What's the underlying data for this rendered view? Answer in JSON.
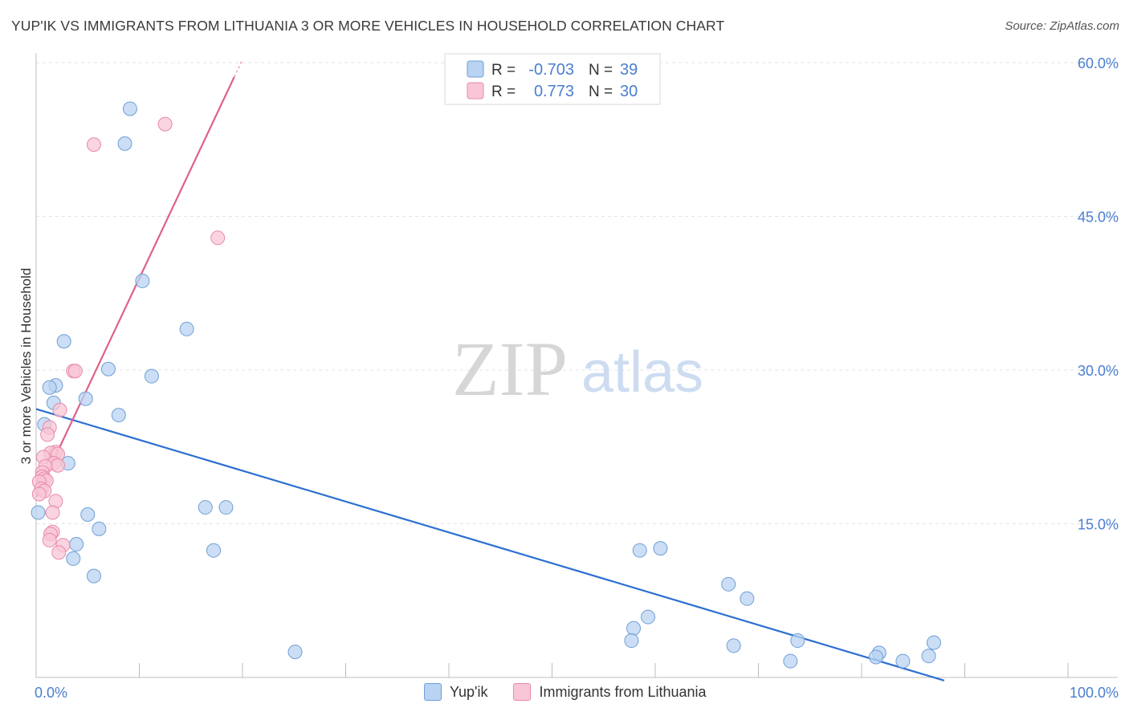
{
  "header": {
    "title": "YUP'IK VS IMMIGRANTS FROM LITHUANIA 3 OR MORE VEHICLES IN HOUSEHOLD CORRELATION CHART",
    "source": "Source: ZipAtlas.com"
  },
  "watermark": {
    "zip": "ZIP",
    "atlas": "atlas"
  },
  "colors": {
    "blue_fill": "#b9d3f2",
    "blue_stroke": "#6f9fd6",
    "blue_line": "#2d6fd1",
    "pink_fill": "#f8c6d6",
    "pink_stroke": "#e88aa8",
    "pink_line": "#e0608c",
    "tick_label": "#4a7fcf",
    "grid": "#e3e3e3"
  },
  "chart_data": {
    "type": "scatter",
    "title": "YUP'IK VS IMMIGRANTS FROM LITHUANIA 3 OR MORE VEHICLES IN HOUSEHOLD CORRELATION CHART",
    "xlabel": "",
    "ylabel": "3 or more Vehicles in Household",
    "xlim": [
      0,
      100
    ],
    "ylim": [
      0,
      60
    ],
    "x_tick_labels": [
      "0.0%",
      "100.0%"
    ],
    "y_ticks": [
      15,
      30,
      45,
      60
    ],
    "y_tick_labels": [
      "15.0%",
      "30.0%",
      "45.0%",
      "60.0%"
    ],
    "legend": {
      "position": "top-center",
      "entries": [
        {
          "r_label": "R =",
          "r_value": "-0.703",
          "n_label": "N =",
          "n_value": "39"
        },
        {
          "r_label": "R =",
          "r_value": "0.773",
          "n_label": "N =",
          "n_value": "30"
        }
      ]
    },
    "series": [
      {
        "name": "Yup'ik",
        "color": "#b9d3f2",
        "points": [
          [
            9.1,
            55.5
          ],
          [
            8.6,
            52.1
          ],
          [
            10.3,
            38.7
          ],
          [
            14.6,
            34.0
          ],
          [
            2.7,
            32.8
          ],
          [
            1.9,
            28.5
          ],
          [
            1.3,
            28.3
          ],
          [
            7.0,
            30.1
          ],
          [
            11.2,
            29.4
          ],
          [
            4.8,
            27.2
          ],
          [
            1.7,
            26.8
          ],
          [
            8.0,
            25.6
          ],
          [
            0.8,
            24.7
          ],
          [
            3.1,
            20.9
          ],
          [
            0.2,
            16.1
          ],
          [
            5.0,
            15.9
          ],
          [
            6.1,
            14.5
          ],
          [
            16.4,
            16.6
          ],
          [
            18.4,
            16.6
          ],
          [
            3.9,
            13.0
          ],
          [
            17.2,
            12.4
          ],
          [
            3.6,
            11.6
          ],
          [
            5.6,
            9.9
          ],
          [
            25.1,
            2.5
          ],
          [
            58.5,
            12.4
          ],
          [
            60.5,
            12.6
          ],
          [
            67.1,
            9.1
          ],
          [
            68.9,
            7.7
          ],
          [
            59.3,
            5.9
          ],
          [
            57.9,
            4.8
          ],
          [
            57.7,
            3.6
          ],
          [
            67.6,
            3.1
          ],
          [
            73.8,
            3.6
          ],
          [
            73.1,
            1.6
          ],
          [
            81.7,
            2.4
          ],
          [
            81.4,
            2.0
          ],
          [
            84.0,
            1.6
          ],
          [
            87.0,
            3.4
          ],
          [
            86.5,
            2.1
          ]
        ]
      },
      {
        "name": "Immigrants from Lithuania",
        "color": "#f8c6d6",
        "points": [
          [
            12.5,
            54.0
          ],
          [
            5.6,
            52.0
          ],
          [
            17.6,
            42.9
          ],
          [
            3.6,
            29.9
          ],
          [
            3.8,
            29.9
          ],
          [
            2.3,
            26.1
          ],
          [
            1.3,
            24.4
          ],
          [
            1.1,
            23.7
          ],
          [
            1.9,
            22.0
          ],
          [
            1.4,
            21.9
          ],
          [
            2.1,
            21.8
          ],
          [
            0.7,
            21.5
          ],
          [
            1.7,
            20.9
          ],
          [
            2.1,
            20.7
          ],
          [
            0.9,
            20.6
          ],
          [
            0.6,
            20.0
          ],
          [
            0.6,
            19.6
          ],
          [
            0.8,
            19.4
          ],
          [
            1.0,
            19.2
          ],
          [
            0.3,
            19.1
          ],
          [
            0.5,
            18.4
          ],
          [
            0.8,
            18.2
          ],
          [
            0.3,
            17.9
          ],
          [
            1.9,
            17.2
          ],
          [
            1.6,
            16.1
          ],
          [
            1.6,
            14.2
          ],
          [
            1.4,
            14.0
          ],
          [
            1.3,
            13.4
          ],
          [
            2.6,
            12.9
          ],
          [
            2.2,
            12.2
          ]
        ]
      }
    ],
    "trendlines": [
      {
        "series": "Yup'ik",
        "x": [
          0,
          88
        ],
        "y": [
          26.2,
          -0.3
        ]
      },
      {
        "series": "Immigrants from Lithuania",
        "x": [
          0,
          19.2
        ],
        "y": [
          17.6,
          58.6
        ],
        "dashed_extension_to": [
          20.0,
          60.3
        ]
      }
    ]
  }
}
